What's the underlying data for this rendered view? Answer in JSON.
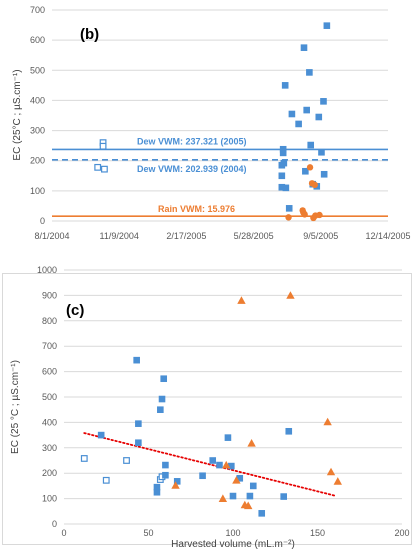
{
  "colors": {
    "blue": "#4a8fd4",
    "orange": "#ed7d31",
    "trend": "#e60000",
    "grid": "#d9d9d9",
    "axis_text": "#595959"
  },
  "chart_data": [
    {
      "panel": "(b)",
      "type": "scatter",
      "title": "",
      "xlabel": "",
      "ylabel": "EC (25°C ; µS.cm⁻¹)",
      "x_is_date": true,
      "xlim": [
        "2004-08-01",
        "2005-12-14"
      ],
      "ylim": [
        0,
        700
      ],
      "yticks": [
        0,
        100,
        200,
        300,
        400,
        500,
        600,
        700
      ],
      "xticks": [
        {
          "value": "2004-08-01",
          "label": "8/1/2004"
        },
        {
          "value": "2004-11-09",
          "label": "11/9/2004"
        },
        {
          "value": "2005-02-17",
          "label": "2/17/2005"
        },
        {
          "value": "2005-05-28",
          "label": "5/28/2005"
        },
        {
          "value": "2005-09-05",
          "label": "9/5/2005"
        },
        {
          "value": "2005-12-14",
          "label": "12/14/2005"
        }
      ],
      "grid": "horizontal",
      "series": [
        {
          "marker": "square-open",
          "color": "#4a8fd4",
          "points": [
            {
              "x": "2004-10-16",
              "y": 260
            },
            {
              "x": "2004-10-16",
              "y": 248
            },
            {
              "x": "2004-10-08",
              "y": 178
            },
            {
              "x": "2004-10-18",
              "y": 172
            }
          ]
        },
        {
          "marker": "square",
          "color": "#4a8fd4",
          "points": [
            {
              "x": "2005-07-14",
              "y": 450
            },
            {
              "x": "2005-07-24",
              "y": 355
            },
            {
              "x": "2005-08-03",
              "y": 322
            },
            {
              "x": "2005-08-11",
              "y": 575
            },
            {
              "x": "2005-08-15",
              "y": 368
            },
            {
              "x": "2005-08-19",
              "y": 493
            },
            {
              "x": "2005-09-02",
              "y": 345
            },
            {
              "x": "2005-09-09",
              "y": 397
            },
            {
              "x": "2005-09-14",
              "y": 648
            },
            {
              "x": "2005-07-11",
              "y": 238
            },
            {
              "x": "2005-07-11",
              "y": 226
            },
            {
              "x": "2005-07-09",
              "y": 185
            },
            {
              "x": "2005-07-12",
              "y": 192
            },
            {
              "x": "2005-07-09",
              "y": 150
            },
            {
              "x": "2005-07-09",
              "y": 112
            },
            {
              "x": "2005-07-15",
              "y": 110
            },
            {
              "x": "2005-07-20",
              "y": 42
            },
            {
              "x": "2005-08-13",
              "y": 165
            },
            {
              "x": "2005-08-21",
              "y": 252
            },
            {
              "x": "2005-08-24",
              "y": 122
            },
            {
              "x": "2005-08-30",
              "y": 115
            },
            {
              "x": "2005-09-06",
              "y": 228
            },
            {
              "x": "2005-09-10",
              "y": 155
            }
          ]
        },
        {
          "marker": "circle",
          "color": "#ed7d31",
          "points": [
            {
              "x": "2005-07-19",
              "y": 12
            },
            {
              "x": "2005-08-09",
              "y": 35
            },
            {
              "x": "2005-08-10",
              "y": 28
            },
            {
              "x": "2005-08-12",
              "y": 22
            },
            {
              "x": "2005-08-20",
              "y": 178
            },
            {
              "x": "2005-08-23",
              "y": 125
            },
            {
              "x": "2005-08-28",
              "y": 18
            },
            {
              "x": "2005-08-25",
              "y": 10
            },
            {
              "x": "2005-09-03",
              "y": 20
            },
            {
              "x": "2005-08-27",
              "y": 120
            }
          ]
        }
      ],
      "reference_lines": [
        {
          "label": "Dew VWM: 237.321 (2005)",
          "y": 237.321,
          "style": "solid",
          "color": "#4a8fd4"
        },
        {
          "label": "Dew VWM: 202.939 (2004)",
          "y": 202.939,
          "style": "dashed",
          "color": "#4a8fd4"
        },
        {
          "label": "Rain VWM: 15.976",
          "y": 15.976,
          "style": "solid",
          "color": "#ed7d31"
        }
      ]
    },
    {
      "panel": "(c)",
      "type": "scatter",
      "title": "",
      "xlabel": "Harvested volume (mL.m⁻²)",
      "ylabel": "EC (25 °C ; µS.cm⁻¹)",
      "xlim": [
        0,
        200
      ],
      "ylim": [
        0,
        1000
      ],
      "xticks": [
        0,
        50,
        100,
        150,
        200
      ],
      "yticks": [
        0,
        100,
        200,
        300,
        400,
        500,
        600,
        700,
        800,
        900,
        1000
      ],
      "grid": "horizontal",
      "series": [
        {
          "marker": "square-open",
          "color": "#4a8fd4",
          "points": [
            {
              "x": 12,
              "y": 258
            },
            {
              "x": 25,
              "y": 172
            },
            {
              "x": 37,
              "y": 250
            },
            {
              "x": 57,
              "y": 175
            },
            {
              "x": 58,
              "y": 186
            }
          ]
        },
        {
          "marker": "square",
          "color": "#4a8fd4",
          "points": [
            {
              "x": 22,
              "y": 350
            },
            {
              "x": 43,
              "y": 645
            },
            {
              "x": 44,
              "y": 395
            },
            {
              "x": 44,
              "y": 320
            },
            {
              "x": 55,
              "y": 145
            },
            {
              "x": 55,
              "y": 125
            },
            {
              "x": 57,
              "y": 450
            },
            {
              "x": 58,
              "y": 492
            },
            {
              "x": 59,
              "y": 572
            },
            {
              "x": 60,
              "y": 232
            },
            {
              "x": 60,
              "y": 192
            },
            {
              "x": 67,
              "y": 168
            },
            {
              "x": 82,
              "y": 190
            },
            {
              "x": 88,
              "y": 250
            },
            {
              "x": 92,
              "y": 232
            },
            {
              "x": 97,
              "y": 340
            },
            {
              "x": 99,
              "y": 228
            },
            {
              "x": 100,
              "y": 110
            },
            {
              "x": 104,
              "y": 180
            },
            {
              "x": 110,
              "y": 110
            },
            {
              "x": 112,
              "y": 150
            },
            {
              "x": 117,
              "y": 42
            },
            {
              "x": 130,
              "y": 108
            },
            {
              "x": 133,
              "y": 365
            }
          ]
        },
        {
          "marker": "triangle",
          "color": "#ed7d31",
          "points": [
            {
              "x": 66,
              "y": 152
            },
            {
              "x": 94,
              "y": 100
            },
            {
              "x": 96,
              "y": 232
            },
            {
              "x": 102,
              "y": 172
            },
            {
              "x": 105,
              "y": 880
            },
            {
              "x": 107,
              "y": 75
            },
            {
              "x": 109,
              "y": 72
            },
            {
              "x": 111,
              "y": 318
            },
            {
              "x": 134,
              "y": 900
            },
            {
              "x": 156,
              "y": 402
            },
            {
              "x": 158,
              "y": 205
            },
            {
              "x": 162,
              "y": 168
            }
          ]
        }
      ],
      "trendline": {
        "style": "dotted",
        "color": "#e60000",
        "x": [
          12,
          160
        ],
        "y": [
          358,
          112
        ]
      }
    }
  ]
}
